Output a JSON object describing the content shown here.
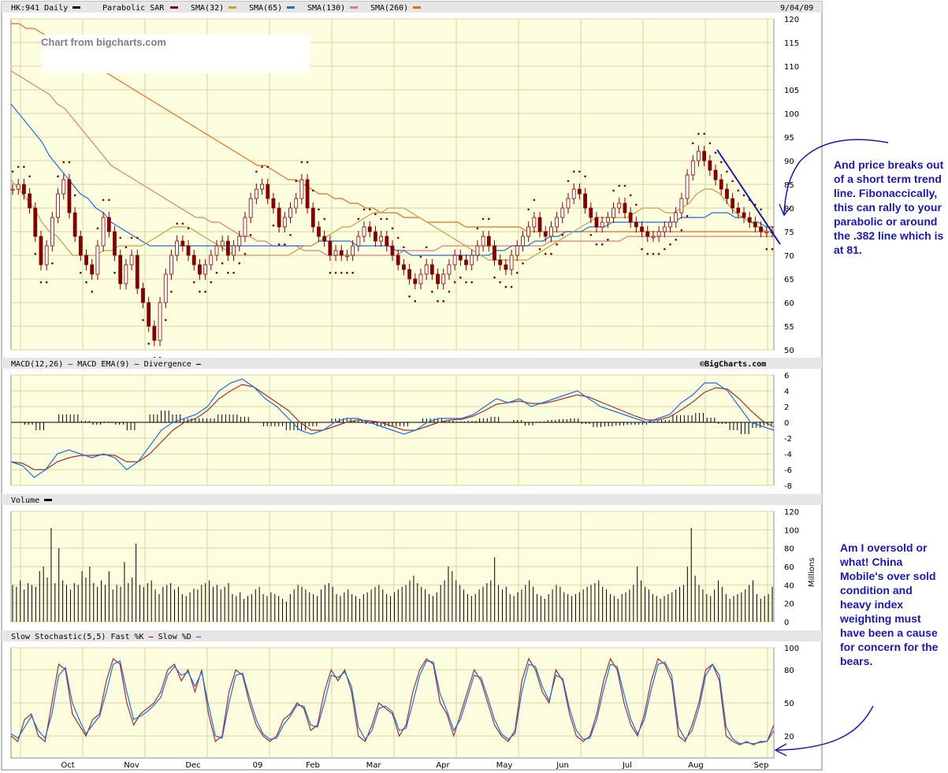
{
  "header": {
    "symbol": "HK:941 Daily",
    "date": "9/04/09",
    "legend": [
      {
        "label": "Parabolic SAR",
        "color": "#800000"
      },
      {
        "label": "SMA(32)",
        "color": "#c8a040"
      },
      {
        "label": "SMA(65)",
        "color": "#1f6fd6"
      },
      {
        "label": "SMA(130)",
        "color": "#d98080"
      },
      {
        "label": "SMA(260)",
        "color": "#e07020"
      }
    ],
    "symbol_swatch": "#000000"
  },
  "watermark": "Chart from bigcharts.com",
  "copyright": "©BigCharts.com",
  "panels": {
    "macd": {
      "title_parts": [
        "MACD(12,26)",
        "MACD EMA(9)",
        "Divergence"
      ],
      "colors": [
        "#1f6fd6",
        "#a03030",
        "#000000"
      ]
    },
    "volume": {
      "title": "Volume",
      "unit": "Millions",
      "color": "#000000"
    },
    "stoch": {
      "title_parts": [
        "Slow Stochastic(5,5)",
        "Fast %K",
        "Slow %D"
      ],
      "colors": [
        "#a03030",
        "#1f6fd6"
      ]
    }
  },
  "annotations": {
    "top": "And price breaks out of a short term trend line. Fibonaccically, this can rally to your parabolic or around the .382 line which is at 81.",
    "bottom": "Am I oversold or what! China Mobile's over sold condition and heavy index weighting must have been a cause for concern for the bears."
  },
  "chart_data": [
    {
      "type": "candlestick",
      "title": "HK:941 Daily",
      "ylim": [
        50,
        120
      ],
      "y_ticks": [
        50,
        55,
        60,
        65,
        70,
        75,
        80,
        85,
        90,
        95,
        100,
        105,
        110,
        115,
        120
      ],
      "x_labels": [
        "Oct",
        "Nov",
        "Dec",
        "09",
        "Feb",
        "Mar",
        "Apr",
        "May",
        "Jun",
        "Jul",
        "Aug",
        "Sep"
      ],
      "grid": true,
      "price_closes": [
        84,
        85,
        83,
        80,
        74,
        68,
        72,
        78,
        83,
        86,
        79,
        74,
        70,
        68,
        66,
        72,
        78,
        75,
        70,
        64,
        68,
        70,
        63,
        60,
        55,
        52,
        60,
        66,
        70,
        73,
        72,
        70,
        68,
        66,
        68,
        70,
        72,
        73,
        70,
        72,
        74,
        78,
        82,
        84,
        85,
        82,
        80,
        76,
        78,
        80,
        82,
        86,
        80,
        76,
        74,
        73,
        70,
        71,
        70,
        70,
        72,
        74,
        76,
        75,
        73,
        74,
        72,
        70,
        68,
        67,
        65,
        64,
        66,
        68,
        66,
        64,
        66,
        68,
        70,
        69,
        68,
        70,
        72,
        74,
        72,
        69,
        68,
        67,
        70,
        72,
        74,
        76,
        78,
        75,
        74,
        76,
        78,
        80,
        82,
        84,
        83,
        80,
        78,
        76,
        77,
        78,
        80,
        81,
        79,
        77,
        76,
        75,
        74,
        74,
        75,
        76,
        77,
        79,
        82,
        87,
        90,
        92,
        90,
        88,
        86,
        84,
        82,
        80,
        79,
        78,
        77,
        76,
        75,
        75,
        75
      ],
      "sma32": [
        86,
        84,
        82,
        80,
        77,
        75,
        74,
        72,
        70,
        70,
        70,
        70,
        71,
        71,
        72,
        72,
        72,
        72,
        73,
        74,
        75,
        76,
        76,
        76,
        75,
        74,
        73,
        72,
        71,
        70,
        70,
        70,
        70,
        70,
        70,
        70,
        70,
        71,
        72,
        72,
        73,
        74,
        75,
        76,
        76,
        77,
        78,
        79,
        79,
        80,
        80,
        80,
        79,
        78,
        77,
        76,
        75,
        74,
        73,
        72,
        71,
        70,
        69,
        69,
        69,
        69,
        69,
        69,
        70,
        71,
        72,
        73,
        74,
        75,
        76,
        77,
        78,
        78,
        78,
        78,
        78,
        79,
        80,
        80,
        80,
        79,
        79,
        80,
        81,
        83,
        84,
        84,
        83,
        81,
        79,
        78,
        77,
        76,
        75,
        75
      ],
      "sma65": [
        102,
        100,
        98,
        96,
        94,
        91,
        89,
        87,
        85,
        83,
        82,
        80,
        79,
        77,
        76,
        75,
        74,
        73,
        72,
        72,
        72,
        72,
        72,
        72,
        72,
        72,
        72,
        72,
        72,
        72,
        72,
        72,
        72,
        72,
        72,
        72,
        72,
        72,
        72,
        72,
        73,
        73,
        73,
        73,
        73,
        72,
        72,
        72,
        72,
        72,
        71,
        71,
        70,
        70,
        70,
        70,
        70,
        70,
        70,
        70,
        70,
        70,
        70,
        71,
        71,
        72,
        72,
        72,
        73,
        73,
        74,
        74,
        75,
        75,
        75,
        76,
        76,
        76,
        77,
        77,
        77,
        77,
        77,
        77,
        77,
        77,
        77,
        78,
        78,
        78,
        78,
        79,
        79,
        79,
        78,
        78,
        77,
        77,
        76,
        76
      ],
      "sma130": [
        109,
        108,
        107,
        106,
        105,
        104,
        102,
        101,
        99,
        97,
        95,
        93,
        91,
        89,
        88,
        87,
        86,
        85,
        84,
        83,
        82,
        81,
        80,
        79,
        78,
        78,
        77,
        77,
        76,
        75,
        74,
        74,
        73,
        73,
        72,
        72,
        72,
        72,
        71,
        71,
        71,
        70,
        70,
        70,
        70,
        70,
        70,
        70,
        70,
        70,
        70,
        71,
        71,
        71,
        71,
        71,
        72,
        72,
        72,
        72,
        72,
        72,
        72,
        72,
        72,
        72,
        72,
        72,
        72,
        72,
        73,
        73,
        73,
        73,
        73,
        73,
        73,
        73,
        73,
        73,
        74,
        74,
        74,
        74,
        74,
        74,
        74,
        74,
        74,
        74,
        74,
        74,
        74,
        74,
        74,
        74,
        74,
        74,
        74,
        74
      ],
      "sma260": [
        119,
        119,
        118,
        118,
        117,
        116,
        115,
        114,
        113,
        112,
        111,
        110,
        109,
        108,
        107,
        106,
        105,
        104,
        103,
        102,
        101,
        100,
        99,
        98,
        97,
        96,
        95,
        94,
        93,
        92,
        91,
        90,
        89,
        89,
        88,
        87,
        86,
        86,
        85,
        84,
        83,
        83,
        82,
        82,
        81,
        81,
        80,
        80,
        79,
        79,
        79,
        78,
        78,
        78,
        77,
        77,
        77,
        77,
        77,
        76,
        76,
        76,
        76,
        76,
        76,
        76,
        76,
        75,
        75,
        75,
        75,
        75,
        75,
        75,
        75,
        75,
        75,
        75,
        75,
        75,
        75,
        75,
        75,
        75,
        75,
        75,
        75,
        75,
        75,
        75,
        75,
        75,
        75,
        75,
        75,
        75,
        75,
        75,
        75,
        75
      ]
    },
    {
      "type": "line",
      "title": "MACD(12,26)",
      "ylim": [
        -8,
        6
      ],
      "y_ticks": [
        -8,
        -6,
        -4,
        -2,
        0,
        2,
        4,
        6
      ],
      "series": [
        {
          "name": "MACD(12,26)",
          "values": [
            -5,
            -5.5,
            -7,
            -6,
            -4,
            -3.5,
            -4,
            -4.5,
            -4,
            -4.5,
            -6,
            -5,
            -3,
            -1,
            0,
            0.5,
            1,
            2,
            4,
            5,
            5.5,
            4.5,
            3,
            2,
            0.5,
            -1,
            -1.5,
            -1,
            0,
            0.5,
            0.5,
            0,
            -0.5,
            -1,
            -1.5,
            -1,
            0,
            0.5,
            0.5,
            0.5,
            1,
            2,
            3,
            2.5,
            3,
            2,
            2.5,
            3,
            3.5,
            4,
            3,
            2,
            1.5,
            1,
            0.5,
            0,
            0.5,
            1,
            2.5,
            3.5,
            5,
            5,
            4,
            2,
            0,
            -0.5,
            -1
          ]
        },
        {
          "name": "MACD EMA(9)",
          "values": [
            -5,
            -5.2,
            -6,
            -6,
            -5,
            -4.5,
            -4.2,
            -4.2,
            -4.1,
            -4.2,
            -5,
            -5,
            -4,
            -2.5,
            -1,
            0,
            0.5,
            1.5,
            3,
            4,
            4.8,
            4.5,
            3.5,
            2.5,
            1.5,
            0,
            -1,
            -1,
            -0.5,
            0,
            0.3,
            0.2,
            0,
            -0.5,
            -1,
            -1,
            -0.5,
            0,
            0.3,
            0.4,
            0.8,
            1.5,
            2.3,
            2.5,
            2.7,
            2.4,
            2.4,
            2.7,
            3.1,
            3.5,
            3.2,
            2.6,
            2,
            1.4,
            0.8,
            0.3,
            0.3,
            0.7,
            1.6,
            2.6,
            3.8,
            4.4,
            4.2,
            3,
            1.5,
            0.2,
            -0.6
          ]
        }
      ],
      "divergence": [
        0,
        -0.3,
        -1,
        0,
        1,
        1,
        0.2,
        -0.3,
        0.1,
        -0.3,
        -1,
        0,
        1,
        1.5,
        1,
        0.5,
        0.5,
        0.5,
        1,
        1,
        0.7,
        0,
        -0.5,
        -0.5,
        -1,
        -1,
        -0.5,
        0,
        0.5,
        0.5,
        0.2,
        -0.2,
        -0.5,
        -0.5,
        -0.5,
        0,
        0.5,
        0.5,
        0.2,
        0.1,
        0.2,
        0.5,
        0.7,
        0,
        0.3,
        -0.4,
        0.1,
        0.3,
        0.4,
        0.5,
        -0.2,
        -0.6,
        -0.5,
        -0.4,
        -0.3,
        -0.3,
        0.2,
        0.3,
        0.9,
        0.9,
        1.2,
        0.6,
        -0.2,
        -1,
        -1.5,
        -0.7,
        -0.4
      ]
    },
    {
      "type": "bar",
      "title": "Volume",
      "ylabel": "Millions",
      "ylim": [
        0,
        120
      ],
      "y_ticks": [
        0,
        20,
        40,
        60,
        80,
        100,
        120
      ],
      "values": [
        40,
        38,
        45,
        35,
        42,
        40,
        38,
        55,
        60,
        48,
        102,
        42,
        80,
        45,
        40,
        35,
        42,
        40,
        55,
        48,
        60,
        42,
        38,
        45,
        40,
        55,
        35,
        40,
        38,
        65,
        42,
        48,
        85,
        40,
        38,
        42,
        45,
        35,
        30,
        38,
        40,
        42,
        35,
        38,
        30,
        28,
        32,
        36,
        35,
        40,
        42,
        45,
        38,
        40,
        35,
        38,
        42,
        30,
        28,
        32,
        25,
        28,
        30,
        35,
        38,
        30,
        28,
        32,
        30,
        28,
        25,
        22,
        30,
        35,
        40,
        38,
        35,
        32,
        30,
        28,
        35,
        40,
        42,
        38,
        30,
        28,
        32,
        35,
        30,
        28,
        25,
        30,
        32,
        35,
        38,
        40,
        35,
        30,
        28,
        32,
        35,
        38,
        40,
        45,
        50,
        42,
        38,
        35,
        30,
        28,
        32,
        40,
        45,
        60,
        55,
        45,
        40,
        35,
        30,
        28,
        30,
        35,
        38,
        42,
        45,
        70,
        40,
        35,
        38,
        30,
        28,
        32,
        35,
        40,
        45,
        38,
        30,
        28,
        25,
        30,
        35,
        40,
        38,
        32,
        30,
        28,
        30,
        32,
        35,
        38,
        40,
        42,
        45,
        38,
        35,
        30,
        28,
        25,
        30,
        32,
        35,
        40,
        60,
        45,
        38,
        35,
        30,
        28,
        25,
        28,
        30,
        32,
        35,
        38,
        40,
        60,
        102,
        50,
        40,
        35,
        30,
        28,
        35,
        45,
        38,
        30,
        25,
        28,
        30,
        32,
        35,
        40,
        45,
        30,
        25,
        28,
        30,
        38
      ]
    },
    {
      "type": "line",
      "title": "Slow Stochastic(5,5)",
      "ylim": [
        0,
        100
      ],
      "y_ticks": [
        20,
        50,
        80,
        100
      ],
      "series": [
        {
          "name": "Fast %K",
          "values": [
            20,
            15,
            35,
            40,
            20,
            15,
            50,
            85,
            80,
            40,
            30,
            20,
            35,
            40,
            70,
            90,
            85,
            50,
            30,
            40,
            45,
            50,
            60,
            80,
            85,
            70,
            80,
            60,
            80,
            40,
            15,
            20,
            60,
            80,
            75,
            50,
            30,
            20,
            15,
            20,
            35,
            40,
            50,
            45,
            25,
            30,
            60,
            80,
            70,
            80,
            60,
            20,
            15,
            30,
            50,
            45,
            40,
            20,
            30,
            60,
            80,
            90,
            85,
            50,
            40,
            20,
            40,
            60,
            80,
            70,
            50,
            30,
            20,
            15,
            25,
            70,
            90,
            80,
            60,
            50,
            80,
            70,
            40,
            20,
            15,
            20,
            40,
            70,
            90,
            80,
            50,
            30,
            20,
            40,
            70,
            90,
            85,
            70,
            20,
            15,
            30,
            50,
            80,
            85,
            70,
            20,
            15,
            12,
            15,
            12,
            15,
            15,
            30
          ]
        },
        {
          "name": "Slow %D",
          "values": [
            22,
            18,
            28,
            38,
            25,
            18,
            40,
            75,
            82,
            50,
            35,
            22,
            30,
            38,
            60,
            85,
            88,
            60,
            35,
            38,
            42,
            48,
            55,
            75,
            83,
            75,
            78,
            65,
            78,
            48,
            20,
            18,
            50,
            75,
            77,
            55,
            35,
            22,
            17,
            18,
            30,
            38,
            48,
            47,
            30,
            28,
            50,
            75,
            73,
            78,
            65,
            28,
            17,
            25,
            45,
            47,
            42,
            25,
            27,
            50,
            75,
            88,
            87,
            58,
            43,
            25,
            35,
            55,
            75,
            73,
            55,
            35,
            22,
            17,
            22,
            60,
            85,
            83,
            65,
            52,
            75,
            72,
            45,
            25,
            17,
            18,
            35,
            62,
            85,
            83,
            58,
            35,
            22,
            35,
            62,
            85,
            87,
            75,
            28,
            17,
            25,
            45,
            75,
            85,
            75,
            28,
            17,
            13,
            14,
            13,
            14,
            15,
            25
          ]
        }
      ]
    }
  ]
}
